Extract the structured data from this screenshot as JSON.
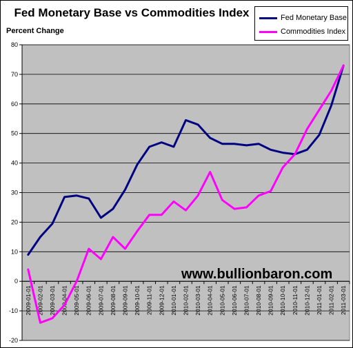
{
  "chart_data": {
    "type": "line",
    "title": "Fed Monetary Base vs Commodities Index",
    "ylabel": "Percent Change",
    "xlabel": "",
    "ylim": [
      -20,
      80
    ],
    "yticks": [
      -20,
      -10,
      0,
      10,
      20,
      30,
      40,
      50,
      60,
      70,
      80
    ],
    "grid": true,
    "legend_position": "top-right",
    "x": [
      "2009-01-01",
      "2009-02-01",
      "2009-03-01",
      "2009-04-01",
      "2009-05-01",
      "2009-06-01",
      "2009-07-01",
      "2009-08-01",
      "2009-09-01",
      "2009-10-01",
      "2009-11-01",
      "2009-12-01",
      "2010-01-01",
      "2010-02-01",
      "2010-03-01",
      "2010-04-01",
      "2010-05-01",
      "2010-06-01",
      "2010-07-01",
      "2010-08-01",
      "2010-09-01",
      "2010-10-01",
      "2010-11-01",
      "2010-12-01",
      "2011-01-01",
      "2011-02-01",
      "2011-03-01"
    ],
    "series": [
      {
        "name": "Fed Monetary Base",
        "color": "#000080",
        "values": [
          9,
          15,
          19.5,
          28.5,
          29,
          28,
          21.5,
          24.5,
          31,
          39.5,
          45.5,
          47,
          45.5,
          54.5,
          53,
          48.5,
          46.5,
          46.5,
          46,
          46.5,
          44.5,
          43.5,
          43,
          44.5,
          49.5,
          59.5,
          73
        ]
      },
      {
        "name": "Commodities Index",
        "color": "#ff00ff",
        "values": [
          4,
          -14,
          -12.5,
          -8,
          0,
          11,
          7.5,
          15,
          11,
          17,
          22.5,
          22.5,
          27,
          24,
          29,
          37,
          27.5,
          24.5,
          25,
          29,
          30.5,
          38.5,
          43,
          51.5,
          58,
          64.5,
          73
        ]
      }
    ]
  },
  "watermark": "www.bullionbaron.com",
  "colors": {
    "plot_background": "#c0c0c0",
    "grid": "#000000"
  }
}
